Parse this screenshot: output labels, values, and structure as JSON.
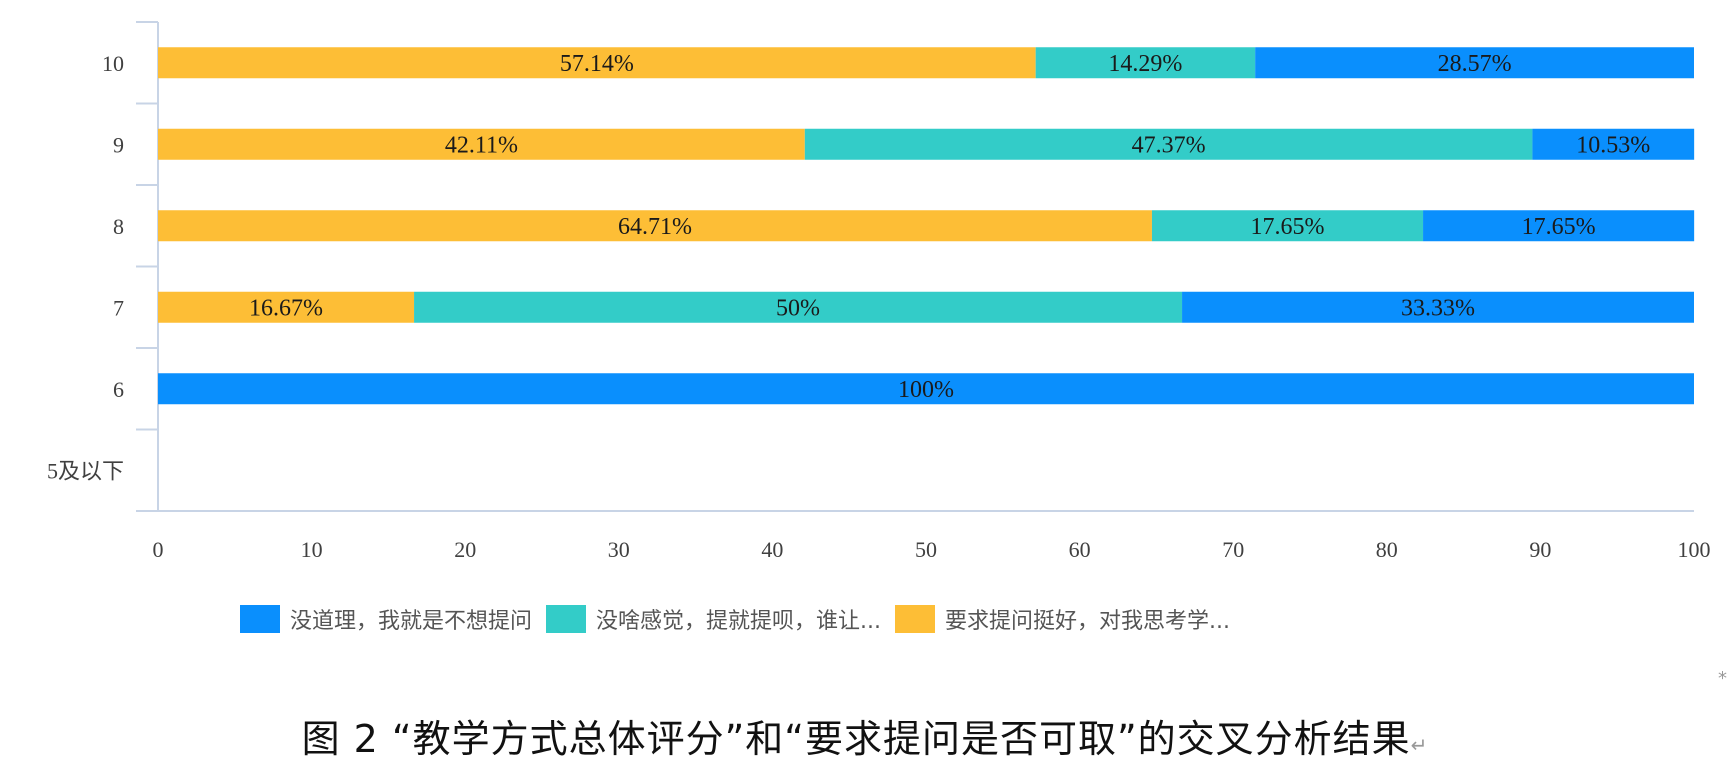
{
  "chart_data": {
    "type": "bar",
    "orientation": "horizontal",
    "stacked": true,
    "categories": [
      "10",
      "9",
      "8",
      "7",
      "6",
      "5及以下"
    ],
    "series": [
      {
        "name": "要求提问挺好，对我思考学...",
        "color": "#FDBE36",
        "values": [
          57.14,
          42.11,
          64.71,
          16.67,
          0,
          0
        ],
        "labels": [
          "57.14%",
          "42.11%",
          "64.71%",
          "16.67%",
          "",
          ""
        ]
      },
      {
        "name": "没啥感觉，提就提呗，谁让...",
        "color": "#33CCC8",
        "values": [
          14.29,
          47.37,
          17.65,
          50,
          0,
          0
        ],
        "labels": [
          "14.29%",
          "47.37%",
          "17.65%",
          "50%",
          "",
          ""
        ]
      },
      {
        "name": "没道理，我就是不想提问",
        "color": "#0A8FFD",
        "values": [
          28.57,
          10.53,
          17.65,
          33.33,
          100,
          0
        ],
        "labels": [
          "28.57%",
          "10.53%",
          "17.65%",
          "33.33%",
          "100%",
          ""
        ]
      }
    ],
    "xlim": [
      0,
      100
    ],
    "xticks": [
      "0",
      "10",
      "20",
      "30",
      "40",
      "50",
      "60",
      "70",
      "80",
      "90",
      "100"
    ],
    "legend_order": [
      "没道理，我就是不想提问",
      "没啥感觉，提就提呗，谁让...",
      "要求提问挺好，对我思考学..."
    ],
    "legend_position": "bottom",
    "grid": false
  },
  "caption": {
    "text": "图 2 “教学方式总体评分”和“要求提问是否可取”的交叉分析结果",
    "mark": "↵"
  },
  "corner_mark": "*"
}
